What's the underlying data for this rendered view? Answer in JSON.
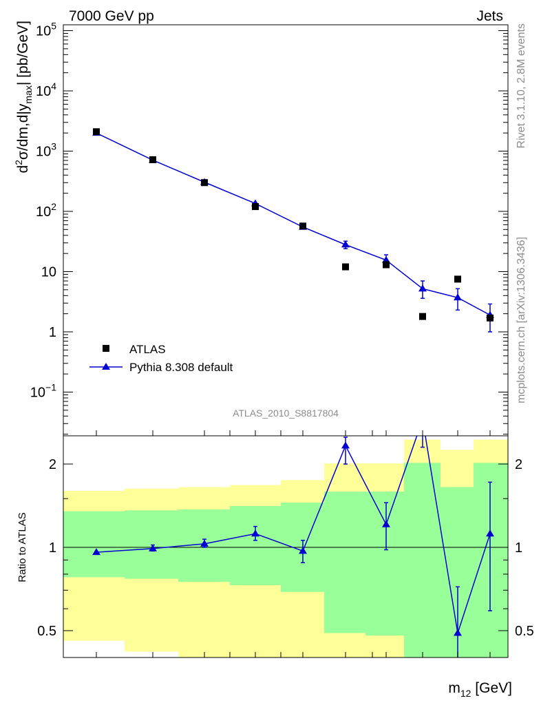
{
  "header": {
    "left": "7000 GeV pp",
    "right": "Jets"
  },
  "side_labels": {
    "rivet": "Rivet 3.1.10,  2.8M events",
    "source": "mcplots.cern.ch [arXiv:1306.3436]"
  },
  "chart_data": [
    {
      "type": "scatter",
      "title": "",
      "watermark": "ATLAS_2010_S8817804",
      "ylabel_parts": {
        "pre": "d",
        "sup1": "2",
        "mid": "σ/dm,d|y",
        "sub": "max",
        "post": "| [pb/GeV]"
      },
      "yscale": "log",
      "ylim": [
        0.02,
        150000
      ],
      "y_tick_labels": [
        "10⁻¹",
        "1",
        "10",
        "10²",
        "10³",
        "10⁴",
        "10⁵"
      ],
      "series": [
        {
          "name": "ATLAS",
          "marker": "square",
          "color": "#000000",
          "points": [
            {
              "x": 1,
              "y": 2100
            },
            {
              "x": 2,
              "y": 720
            },
            {
              "x": 3,
              "y": 300
            },
            {
              "x": 4,
              "y": 120
            },
            {
              "x": 5,
              "y": 57
            },
            {
              "x": 6,
              "y": 12
            },
            {
              "x": 7,
              "y": 13
            },
            {
              "x": 8,
              "y": 1.8
            },
            {
              "x": 9,
              "y": 7.5
            },
            {
              "x": 10,
              "y": 1.7
            }
          ]
        },
        {
          "name": "Pythia 8.308 default",
          "marker": "triangle",
          "color": "#0000d0",
          "points": [
            {
              "x": 1,
              "y": 2000,
              "err": [
                0,
                0
              ]
            },
            {
              "x": 2,
              "y": 710,
              "err": [
                0,
                0
              ]
            },
            {
              "x": 3,
              "y": 305,
              "err": [
                0,
                0
              ]
            },
            {
              "x": 4,
              "y": 135,
              "err": [
                0,
                0
              ]
            },
            {
              "x": 5,
              "y": 55,
              "err": [
                0,
                0
              ]
            },
            {
              "x": 6,
              "y": 28,
              "err": [
                24,
                32
              ]
            },
            {
              "x": 7,
              "y": 15.5,
              "err": [
                12.5,
                19
              ]
            },
            {
              "x": 8,
              "y": 5.2,
              "err": [
                3.6,
                7
              ]
            },
            {
              "x": 9,
              "y": 3.7,
              "err": [
                2.3,
                5.2
              ]
            },
            {
              "x": 10,
              "y": 1.9,
              "err": [
                1.0,
                2.9
              ]
            }
          ]
        }
      ],
      "legend": {
        "placement": "lower-left"
      }
    },
    {
      "type": "line",
      "ylabel": "Ratio to ATLAS",
      "xlabel_parts": {
        "pre": "m",
        "sub": "12",
        "post": " [GeV]"
      },
      "yscale": "log",
      "ylim": [
        0.4,
        2.45
      ],
      "y_ticks": [
        0.5,
        1,
        2
      ],
      "y_tick_labels": [
        "0.5",
        "1",
        "2"
      ],
      "bands": [
        {
          "x": [
            0,
            1.5
          ],
          "green": [
            0.78,
            1.35
          ],
          "yellow": [
            0.46,
            1.6
          ]
        },
        {
          "x": [
            1.5,
            2.5
          ],
          "green": [
            0.77,
            1.36
          ],
          "yellow": [
            0.42,
            1.63
          ]
        },
        {
          "x": [
            2.5,
            3.5
          ],
          "green": [
            0.75,
            1.37
          ],
          "yellow": [
            0.37,
            1.65
          ]
        },
        {
          "x": [
            3.5,
            4.5
          ],
          "green": [
            0.73,
            1.41
          ],
          "yellow": [
            0.35,
            1.68
          ]
        },
        {
          "x": [
            4.5,
            5.5
          ],
          "green": [
            0.69,
            1.45
          ],
          "yellow": [
            0.35,
            1.75
          ]
        },
        {
          "x": [
            5.5,
            6.5
          ],
          "green": [
            0.49,
            1.59
          ],
          "yellow": [
            0.35,
            2.01
          ]
        },
        {
          "x": [
            6.5,
            7.5
          ],
          "green": [
            0.48,
            1.59
          ],
          "yellow": [
            0.35,
            2.01
          ]
        },
        {
          "x": [
            7.5,
            8.5
          ],
          "green": [
            0.35,
            2.02
          ],
          "yellow": [
            0.35,
            2.45
          ]
        },
        {
          "x": [
            8.5,
            9.5
          ],
          "green": [
            0.35,
            1.65
          ],
          "yellow": [
            0.37,
            2.25
          ]
        },
        {
          "x": [
            9.5,
            11
          ],
          "green": [
            0.35,
            2.02
          ],
          "yellow": [
            0.35,
            2.45
          ]
        }
      ],
      "series": [
        {
          "name": "Pythia 8.308 default",
          "color": "#0000d0",
          "points": [
            {
              "x": 1,
              "y": 0.96,
              "err": [
                0.96,
                0.96
              ]
            },
            {
              "x": 2,
              "y": 0.99,
              "err": [
                0.97,
                1.02
              ]
            },
            {
              "x": 3,
              "y": 1.03,
              "err": [
                1.0,
                1.07
              ]
            },
            {
              "x": 4,
              "y": 1.12,
              "err": [
                1.06,
                1.19
              ]
            },
            {
              "x": 5,
              "y": 0.97,
              "err": [
                0.88,
                1.06
              ]
            },
            {
              "x": 6,
              "y": 2.33,
              "err": [
                2.0,
                2.5
              ]
            },
            {
              "x": 7,
              "y": 1.21,
              "err": [
                0.98,
                1.45
              ]
            },
            {
              "x": 8,
              "y": 2.9,
              "err": [
                2.3,
                4.0
              ]
            },
            {
              "x": 9,
              "y": 0.49,
              "err": [
                0.3,
                0.72
              ]
            },
            {
              "x": 10,
              "y": 1.12,
              "err": [
                0.59,
                1.72
              ]
            }
          ]
        }
      ]
    }
  ]
}
